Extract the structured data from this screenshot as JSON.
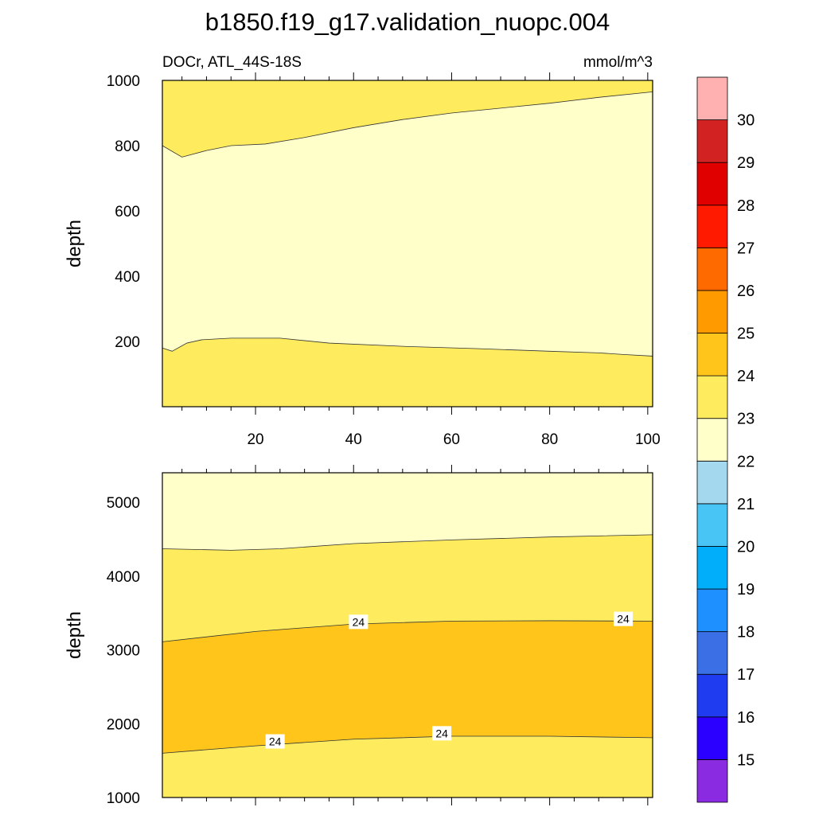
{
  "chart_data": [
    {
      "type": "contour",
      "title": "b1850.f19_g17.validation_nuopc.004",
      "left_string": "DOCr, ATL_44S-18S",
      "right_string": "mmol/m^3",
      "ylabel": "depth",
      "xlabel": "",
      "xlim": [
        1,
        101
      ],
      "ylim": [
        1000,
        0
      ],
      "x_ticks": [
        20,
        40,
        60,
        80,
        100
      ],
      "y_ticks": [
        200,
        400,
        600,
        800,
        1000
      ],
      "filled_bands": [
        {
          "range": [
            23,
            24
          ],
          "upper": [
            [
              1,
              0
            ],
            [
              101,
              0
            ]
          ],
          "lower": [
            [
              1,
              180
            ],
            [
              3,
              170
            ],
            [
              6,
              195
            ],
            [
              9,
              205
            ],
            [
              15,
              210
            ],
            [
              25,
              210
            ],
            [
              35,
              195
            ],
            [
              50,
              185
            ],
            [
              65,
              178
            ],
            [
              80,
              170
            ],
            [
              90,
              165
            ],
            [
              95,
              160
            ],
            [
              101,
              155
            ]
          ]
        },
        {
          "range": [
            22,
            23
          ],
          "upper": [
            [
              1,
              180
            ],
            [
              3,
              170
            ],
            [
              6,
              195
            ],
            [
              9,
              205
            ],
            [
              15,
              210
            ],
            [
              25,
              210
            ],
            [
              35,
              195
            ],
            [
              50,
              185
            ],
            [
              65,
              178
            ],
            [
              80,
              170
            ],
            [
              90,
              165
            ],
            [
              95,
              160
            ],
            [
              101,
              155
            ]
          ],
          "lower": [
            [
              1,
              800
            ],
            [
              5,
              765
            ],
            [
              10,
              785
            ],
            [
              15,
              800
            ],
            [
              22,
              805
            ],
            [
              30,
              825
            ],
            [
              40,
              855
            ],
            [
              50,
              880
            ],
            [
              60,
              900
            ],
            [
              70,
              915
            ],
            [
              80,
              930
            ],
            [
              90,
              948
            ],
            [
              101,
              965
            ]
          ]
        },
        {
          "range": [
            23,
            24
          ],
          "upper": [
            [
              1,
              800
            ],
            [
              5,
              765
            ],
            [
              10,
              785
            ],
            [
              15,
              800
            ],
            [
              22,
              805
            ],
            [
              30,
              825
            ],
            [
              40,
              855
            ],
            [
              50,
              880
            ],
            [
              60,
              900
            ],
            [
              70,
              915
            ],
            [
              80,
              930
            ],
            [
              90,
              948
            ],
            [
              101,
              965
            ]
          ],
          "lower": [
            [
              1,
              1000
            ],
            [
              101,
              1000
            ]
          ]
        }
      ]
    },
    {
      "type": "contour",
      "ylabel": "depth",
      "xlim": [
        1,
        101
      ],
      "ylim": [
        5400,
        1000
      ],
      "y_ticks": [
        1000,
        2000,
        3000,
        4000,
        5000
      ],
      "filled_bands": [
        {
          "range": [
            23,
            24
          ],
          "upper": [
            [
              1,
              1000
            ],
            [
              101,
              1000
            ]
          ],
          "lower": [
            [
              1,
              1600
            ],
            [
              20,
              1700
            ],
            [
              40,
              1790
            ],
            [
              60,
              1830
            ],
            [
              80,
              1830
            ],
            [
              101,
              1810
            ]
          ]
        },
        {
          "range": [
            24,
            25
          ],
          "upper": [
            [
              1,
              1600
            ],
            [
              20,
              1700
            ],
            [
              40,
              1790
            ],
            [
              60,
              1830
            ],
            [
              80,
              1830
            ],
            [
              101,
              1810
            ]
          ],
          "lower": [
            [
              1,
              3110
            ],
            [
              20,
              3250
            ],
            [
              40,
              3350
            ],
            [
              60,
              3390
            ],
            [
              80,
              3395
            ],
            [
              101,
              3390
            ]
          ]
        },
        {
          "range": [
            23,
            24
          ],
          "upper": [
            [
              1,
              3110
            ],
            [
              20,
              3250
            ],
            [
              40,
              3350
            ],
            [
              60,
              3390
            ],
            [
              80,
              3395
            ],
            [
              101,
              3390
            ]
          ],
          "lower": [
            [
              1,
              4370
            ],
            [
              15,
              4350
            ],
            [
              25,
              4370
            ],
            [
              40,
              4440
            ],
            [
              60,
              4490
            ],
            [
              80,
              4530
            ],
            [
              101,
              4560
            ]
          ]
        },
        {
          "range": [
            22,
            23
          ],
          "upper": [
            [
              1,
              4370
            ],
            [
              15,
              4350
            ],
            [
              25,
              4370
            ],
            [
              40,
              4440
            ],
            [
              60,
              4490
            ],
            [
              80,
              4530
            ],
            [
              101,
              4560
            ]
          ],
          "lower": [
            [
              1,
              5400
            ],
            [
              101,
              5400
            ]
          ]
        }
      ],
      "contour_labels": [
        {
          "text": "24",
          "x": 24,
          "y": 1760
        },
        {
          "text": "24",
          "x": 58,
          "y": 1870
        },
        {
          "text": "24",
          "x": 41,
          "y": 3380
        },
        {
          "text": "24",
          "x": 95,
          "y": 3420
        }
      ]
    }
  ],
  "colorbar": {
    "labels": [
      "15",
      "16",
      "17",
      "18",
      "19",
      "20",
      "21",
      "22",
      "23",
      "24",
      "25",
      "26",
      "27",
      "28",
      "29",
      "30"
    ],
    "colors": [
      "#8a2be2",
      "#2b00ff",
      "#1f3cf0",
      "#3a6fe6",
      "#1e90ff",
      "#00aefa",
      "#48c4f5",
      "#a4d8ef",
      "#ffffca",
      "#ffec5e",
      "#ffc51b",
      "#ff9a00",
      "#ff6a00",
      "#ff1a00",
      "#e00000",
      "#d22222",
      "#ffb0b0"
    ]
  }
}
